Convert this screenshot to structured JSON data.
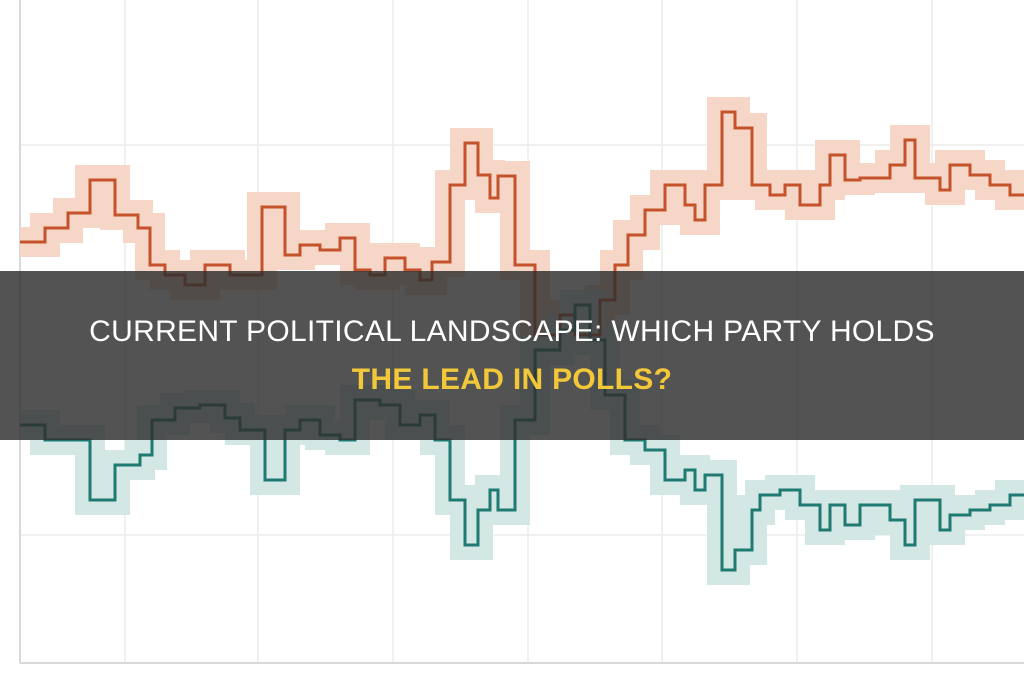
{
  "banner": {
    "title_lines": [
      "CURRENT POLITICAL LANDSCAPE: WHICH PARTY HOLDS",
      "THE LEAD IN POLLS?"
    ]
  }
}
